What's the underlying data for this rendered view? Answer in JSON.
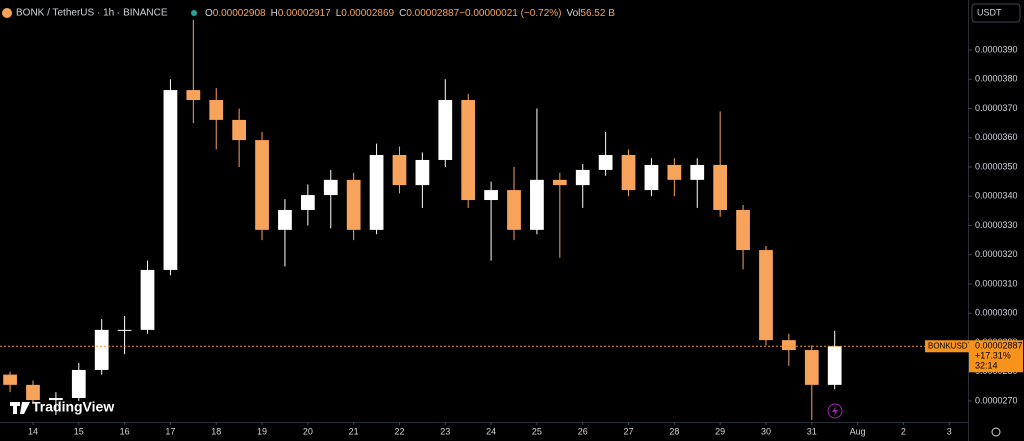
{
  "chart_data": {
    "type": "candlestick",
    "title": "BONK / TetherUS · 1h · BINANCE",
    "header_values": [
      {
        "label": "O",
        "value": "0.00002908"
      },
      {
        "label": "H",
        "value": "0.00002917"
      },
      {
        "label": "L",
        "value": "0.00002869"
      },
      {
        "label": "C",
        "value": "0.00002887"
      },
      {
        "label": "",
        "value": "−0.00000021 (−0.72%)"
      },
      {
        "label": "Vol",
        "value": "56.52 B"
      }
    ],
    "currency": "USDT",
    "watermark": "TradingView",
    "up_color": "#ffffff",
    "down_color": "#f7a35c",
    "x": [
      -0.5,
      0,
      0.5,
      1,
      1.5,
      2,
      2.5,
      3,
      3.5,
      4,
      4.5,
      5,
      5.5,
      6,
      6.5,
      7,
      7.5,
      8,
      8.5,
      9,
      9.5,
      10,
      10.5,
      11,
      11.5,
      12,
      12.5,
      13,
      13.5,
      14,
      14.5,
      15,
      15.5,
      16,
      16.5,
      17,
      17.5
    ],
    "open": [
      2.79e-05,
      2.755e-05,
      2.703e-05,
      2.71e-05,
      2.806e-05,
      2.943e-05,
      2.943e-05,
      3.148e-05,
      3.763e-05,
      3.729e-05,
      3.661e-05,
      3.592e-05,
      3.285e-05,
      3.353e-05,
      3.404e-05,
      3.456e-05,
      3.285e-05,
      3.541e-05,
      3.438e-05,
      3.524e-05,
      3.729e-05,
      3.387e-05,
      3.421e-05,
      3.285e-05,
      3.456e-05,
      3.438e-05,
      3.49e-05,
      3.541e-05,
      3.421e-05,
      3.507e-05,
      3.456e-05,
      3.507e-05,
      3.353e-05,
      3.216e-05,
      2.908e-05,
      2.874e-05,
      2.755e-05
    ],
    "high": [
      2.8e-05,
      2.77e-05,
      2.73e-05,
      2.83e-05,
      2.98e-05,
      2.99e-05,
      3.18e-05,
      3.8e-05,
      4.003e-05,
      3.77e-05,
      3.7e-05,
      3.62e-05,
      3.39e-05,
      3.44e-05,
      3.49e-05,
      3.48e-05,
      3.58e-05,
      3.57e-05,
      3.55e-05,
      3.8e-05,
      3.75e-05,
      3.45e-05,
      3.5e-05,
      3.7e-05,
      3.48e-05,
      3.51e-05,
      3.62e-05,
      3.56e-05,
      3.53e-05,
      3.53e-05,
      3.53e-05,
      3.69e-05,
      3.37e-05,
      3.23e-05,
      2.93e-05,
      2.89e-05,
      2.94e-05
    ],
    "low": [
      2.73e-05,
      2.69e-05,
      2.652e-05,
      2.7e-05,
      2.79e-05,
      2.86e-05,
      2.93e-05,
      3.13e-05,
      3.65e-05,
      3.56e-05,
      3.5e-05,
      3.25e-05,
      3.16e-05,
      3.3e-05,
      3.29e-05,
      3.25e-05,
      3.27e-05,
      3.41e-05,
      3.36e-05,
      3.5e-05,
      3.36e-05,
      3.18e-05,
      3.25e-05,
      3.27e-05,
      3.19e-05,
      3.36e-05,
      3.47e-05,
      3.4e-05,
      3.4e-05,
      3.4e-05,
      3.36e-05,
      3.33e-05,
      3.15e-05,
      2.89e-05,
      2.82e-05,
      2.635e-05,
      2.74e-05
    ],
    "close": [
      2.755e-05,
      2.703e-05,
      2.71e-05,
      2.806e-05,
      2.943e-05,
      2.943e-05,
      3.148e-05,
      3.763e-05,
      3.729e-05,
      3.661e-05,
      3.592e-05,
      3.285e-05,
      3.353e-05,
      3.404e-05,
      3.456e-05,
      3.285e-05,
      3.541e-05,
      3.438e-05,
      3.524e-05,
      3.729e-05,
      3.387e-05,
      3.421e-05,
      3.285e-05,
      3.456e-05,
      3.438e-05,
      3.49e-05,
      3.541e-05,
      3.421e-05,
      3.507e-05,
      3.456e-05,
      3.507e-05,
      3.353e-05,
      3.216e-05,
      2.908e-05,
      2.874e-05,
      2.755e-05,
      2.887e-05
    ],
    "xlim": [
      -0.72,
      20.41
    ],
    "xticks": [
      {
        "value": 0,
        "label": "14"
      },
      {
        "value": 1,
        "label": "15"
      },
      {
        "value": 2,
        "label": "16"
      },
      {
        "value": 3,
        "label": "17"
      },
      {
        "value": 4,
        "label": "18"
      },
      {
        "value": 5,
        "label": "19"
      },
      {
        "value": 6,
        "label": "20"
      },
      {
        "value": 7,
        "label": "21"
      },
      {
        "value": 8,
        "label": "22"
      },
      {
        "value": 9,
        "label": "23"
      },
      {
        "value": 10,
        "label": "24"
      },
      {
        "value": 11,
        "label": "25"
      },
      {
        "value": 12,
        "label": "26"
      },
      {
        "value": 13,
        "label": "27"
      },
      {
        "value": 14,
        "label": "28"
      },
      {
        "value": 15,
        "label": "29"
      },
      {
        "value": 16,
        "label": "30"
      },
      {
        "value": 17,
        "label": "31"
      },
      {
        "value": 18,
        "label": "Aug"
      },
      {
        "value": 19,
        "label": "2"
      },
      {
        "value": 20,
        "label": "3"
      }
    ],
    "ylim": [
      2.628e-05,
      4.071e-05
    ],
    "yticks": [
      {
        "value": 2.7e-05,
        "label": "0.0000270"
      },
      {
        "value": 2.8e-05,
        "label": "0.0000280"
      },
      {
        "value": 2.9e-05,
        "label": "0.0000290"
      },
      {
        "value": 3e-05,
        "label": "0.0000300"
      },
      {
        "value": 3.1e-05,
        "label": "0.0000310"
      },
      {
        "value": 3.2e-05,
        "label": "0.0000320"
      },
      {
        "value": 3.3e-05,
        "label": "0.0000330"
      },
      {
        "value": 3.4e-05,
        "label": "0.0000340"
      },
      {
        "value": 3.5e-05,
        "label": "0.0000350"
      },
      {
        "value": 3.6e-05,
        "label": "0.0000360"
      },
      {
        "value": 3.7e-05,
        "label": "0.0000370"
      },
      {
        "value": 3.8e-05,
        "label": "0.0000380"
      },
      {
        "value": 3.9e-05,
        "label": "0.0000390"
      }
    ],
    "grid": false,
    "last_price": {
      "symbol": "BONKUSDT",
      "value": 2.887e-05,
      "change": "+17.31%",
      "countdown": "32:14",
      "color": "#f7931a"
    }
  }
}
